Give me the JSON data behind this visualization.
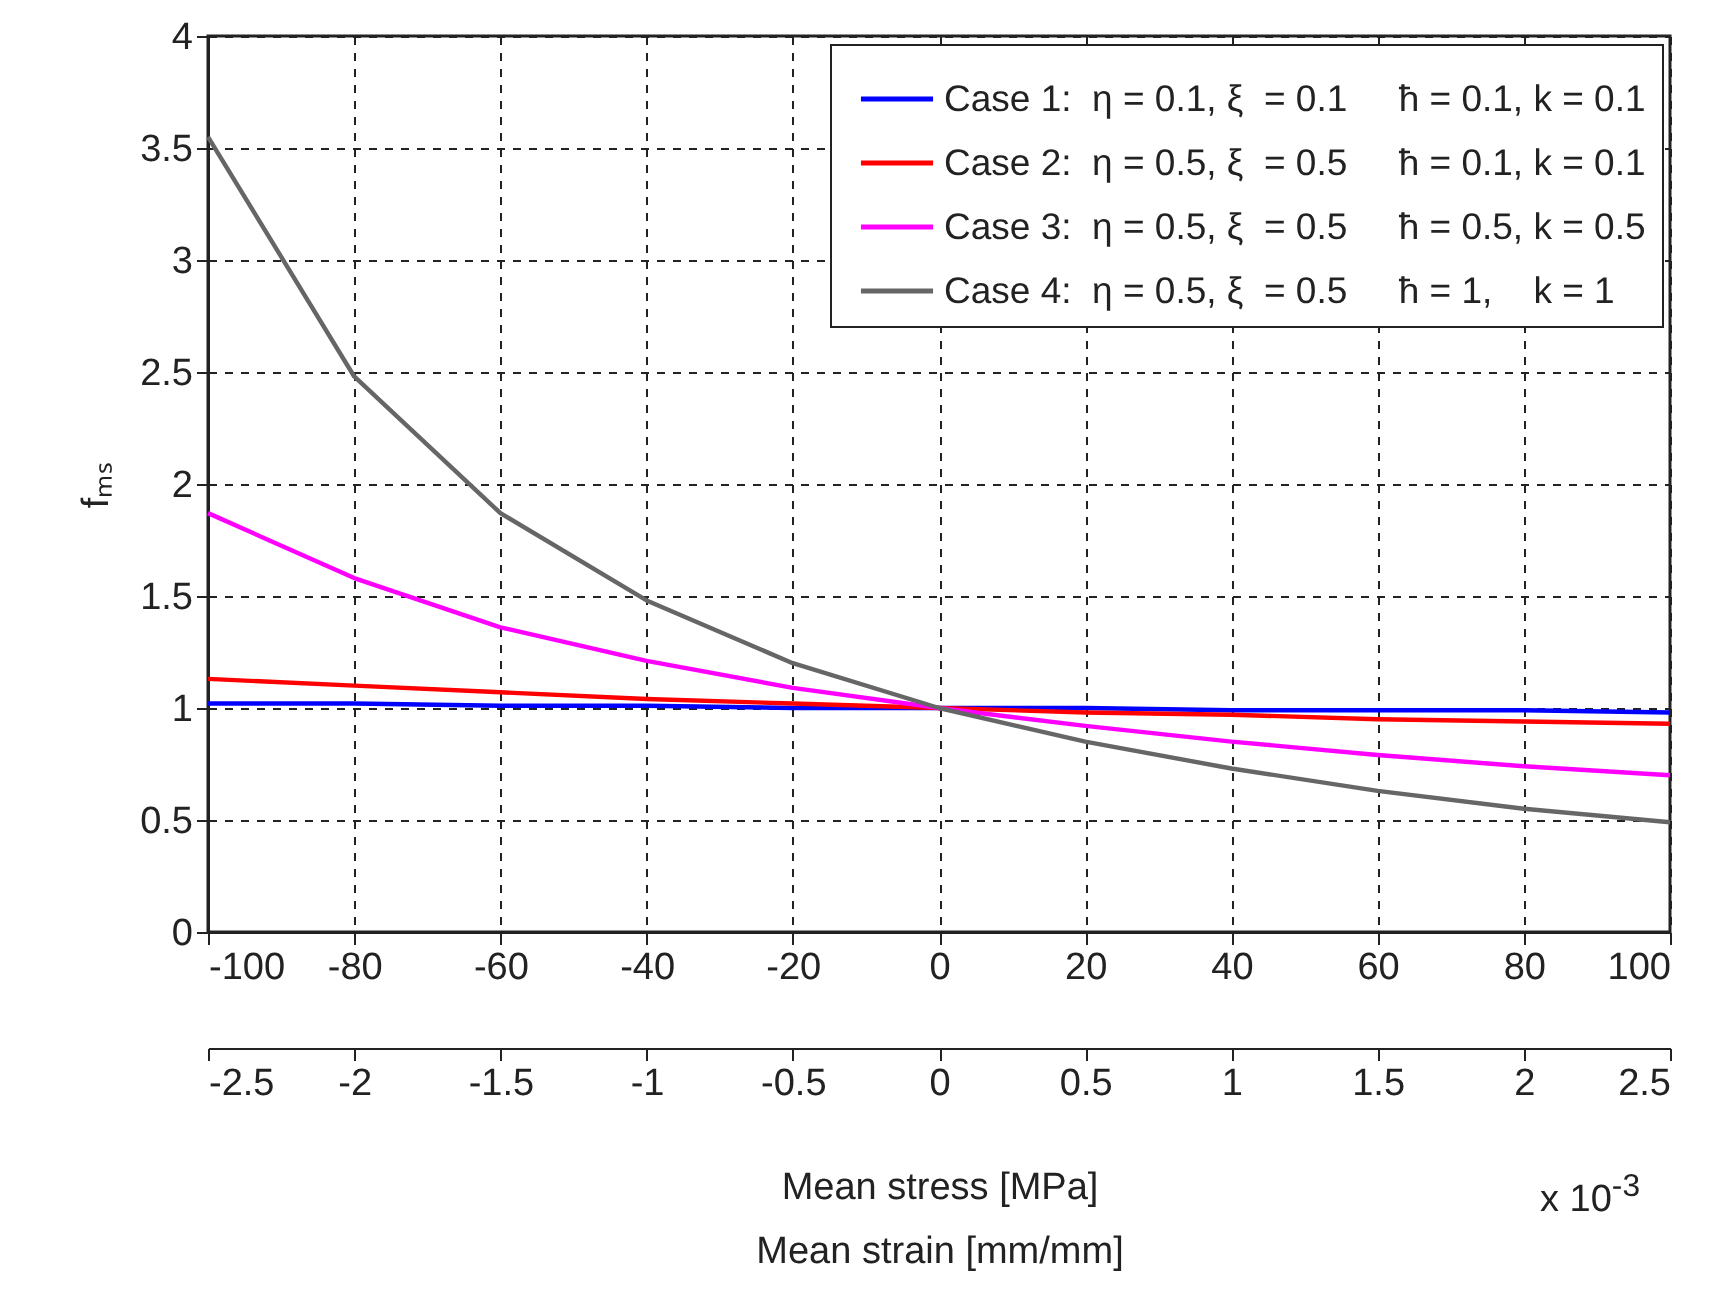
{
  "chart_data": {
    "type": "line",
    "xlabel": "Mean stress [MPa]",
    "ylabel": "fₘₛ",
    "x2label": "Mean strain [mm/mm]",
    "x": [
      -100,
      -80,
      -60,
      -40,
      -20,
      0,
      20,
      40,
      60,
      80,
      100
    ],
    "series": [
      {
        "name": "Case 1:  η = 0.1, ξ  = 0.1     ħ = 0.1, k = 0.1",
        "color": "#0000ff",
        "values": [
          1.02,
          1.02,
          1.01,
          1.01,
          1.0,
          1.0,
          1.0,
          0.99,
          0.99,
          0.99,
          0.98
        ]
      },
      {
        "name": "Case 2:  η = 0.5, ξ  = 0.5     ħ = 0.1, k = 0.1",
        "color": "#ff0000",
        "values": [
          1.13,
          1.1,
          1.07,
          1.04,
          1.02,
          1.0,
          0.98,
          0.97,
          0.95,
          0.94,
          0.93
        ]
      },
      {
        "name": "Case 3:  η = 0.5, ξ  = 0.5     ħ = 0.5, k = 0.5",
        "color": "#ff00ff",
        "values": [
          1.87,
          1.58,
          1.36,
          1.21,
          1.09,
          1.0,
          0.92,
          0.85,
          0.79,
          0.74,
          0.7
        ]
      },
      {
        "name": "Case 4:  η = 0.5, ξ  = 0.5     ħ = 1,    k = 1",
        "color": "#666666",
        "values": [
          3.55,
          2.48,
          1.87,
          1.48,
          1.2,
          1.0,
          0.85,
          0.73,
          0.63,
          0.55,
          0.49
        ]
      }
    ],
    "xlim": [
      -100,
      100
    ],
    "xticks": [
      -100,
      -80,
      -60,
      -40,
      -20,
      0,
      20,
      40,
      60,
      80,
      100
    ],
    "x2lim": [
      -2.5,
      2.5
    ],
    "x2ticks": [
      -2.5,
      -2,
      -1.5,
      -1,
      -0.5,
      0,
      0.5,
      1,
      1.5,
      2,
      2.5
    ],
    "ylim": [
      0,
      4
    ],
    "yticks": [
      0,
      0.5,
      1,
      1.5,
      2,
      2.5,
      3,
      3.5,
      4
    ],
    "annotations": [
      "x 10$^{-3}$"
    ],
    "grid": true,
    "legend": "top right",
    "line_style": "solid",
    "marker": "none"
  }
}
